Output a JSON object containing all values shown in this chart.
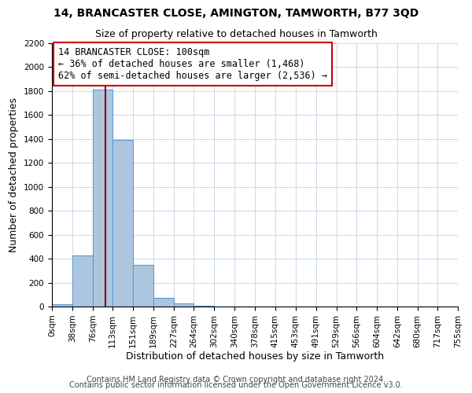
{
  "title": "14, BRANCASTER CLOSE, AMINGTON, TAMWORTH, B77 3QD",
  "subtitle": "Size of property relative to detached houses in Tamworth",
  "xlabel": "Distribution of detached houses by size in Tamworth",
  "ylabel": "Number of detached properties",
  "bar_edges": [
    0,
    38,
    76,
    113,
    151,
    189,
    227,
    264,
    302,
    340,
    378,
    415,
    453,
    491,
    529,
    566,
    604,
    642,
    680,
    717,
    755
  ],
  "bar_heights": [
    20,
    430,
    1810,
    1390,
    350,
    75,
    25,
    5,
    0,
    0,
    0,
    0,
    0,
    0,
    0,
    0,
    0,
    0,
    0,
    0
  ],
  "bar_color": "#adc6e0",
  "bar_edge_color": "#5b9bd5",
  "property_line_x": 100,
  "property_line_color": "#8b0000",
  "annotation_text": "14 BRANCASTER CLOSE: 100sqm\n← 36% of detached houses are smaller (1,468)\n62% of semi-detached houses are larger (2,536) →",
  "annotation_box_color": "#ffffff",
  "annotation_box_edge_color": "#cc0000",
  "ylim": [
    0,
    2200
  ],
  "yticks": [
    0,
    200,
    400,
    600,
    800,
    1000,
    1200,
    1400,
    1600,
    1800,
    2000,
    2200
  ],
  "xtick_labels": [
    "0sqm",
    "38sqm",
    "76sqm",
    "113sqm",
    "151sqm",
    "189sqm",
    "227sqm",
    "264sqm",
    "302sqm",
    "340sqm",
    "378sqm",
    "415sqm",
    "453sqm",
    "491sqm",
    "529sqm",
    "566sqm",
    "604sqm",
    "642sqm",
    "680sqm",
    "717sqm",
    "755sqm"
  ],
  "grid_color": "#c8d8e8",
  "background_color": "#ffffff",
  "footer_line1": "Contains HM Land Registry data © Crown copyright and database right 2024.",
  "footer_line2": "Contains public sector information licensed under the Open Government Licence v3.0.",
  "title_fontsize": 10,
  "subtitle_fontsize": 9,
  "axis_label_fontsize": 9,
  "tick_fontsize": 7.5,
  "annotation_fontsize": 8.5,
  "footer_fontsize": 7
}
